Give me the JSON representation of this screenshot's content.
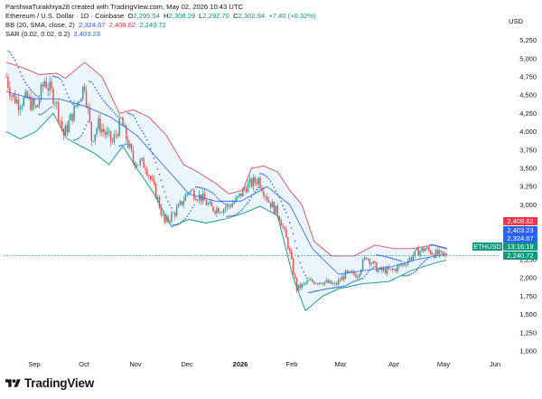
{
  "header": {
    "attribution": "ParshwaTurakhiya28 created with TradingView.com, May 02, 2026 10:43 UTC",
    "symbol": "Ethereum / U.S. Dollar · 1D · Coinbase",
    "o_label": "O",
    "o_value": "2,295.54",
    "h_label": "H",
    "h_value": "2,308.29",
    "l_label": "L",
    "l_value": "2,292.70",
    "c_label": "C",
    "c_value": "2,302.94",
    "change": "+7.40 (+0.32%)",
    "bb_label": "BB (20, SMA, close, 2)",
    "bb_basis": "2,324.67",
    "bb_upper": "2,408.62",
    "bb_lower": "2,240.72",
    "sar_label": "SAR (0.02, 0.02, 0.2)",
    "sar_value": "2,403.23"
  },
  "currency_label": "USD",
  "footer": {
    "brand": "TradingView"
  },
  "colors": {
    "up": "#26a69a",
    "down": "#ef5350",
    "bb_upper": "#e54865",
    "bb_lower": "#089981",
    "bb_basis": "#2962ff",
    "bb_fill": "#e3f2fd",
    "sar": "#2962ff",
    "price_line": "#089981"
  },
  "chart_data": {
    "type": "candlestick",
    "symbol": "ETHUSD",
    "timeframe": "1D",
    "x_ticks": [
      "Sep",
      "Oct",
      "Nov",
      "Dec",
      "2026",
      "Feb",
      "Mar",
      "Apr",
      "May",
      "Jun"
    ],
    "y_ticks": [
      1000,
      1250,
      1500,
      1750,
      2000,
      2250,
      2500,
      2750,
      3000,
      3250,
      3500,
      3750,
      4000,
      4250,
      4500,
      4750,
      5000,
      5250
    ],
    "ylim": [
      875,
      5430
    ],
    "grid": false,
    "price_labels": [
      {
        "text": "2,408.62",
        "value": 2408.62,
        "color": "#f23645"
      },
      {
        "text": "2,403.23",
        "value": 2403.23,
        "color": "#2962ff"
      },
      {
        "text": "2,324.67",
        "value": 2324.67,
        "color": "#2962ff"
      },
      {
        "text": "ETHUSD",
        "value": 2302.94,
        "color": "#089981"
      },
      {
        "text": "13:16:19",
        "value": 2302.94,
        "color": "#089981"
      },
      {
        "text": "2,240.72",
        "value": 2240.72,
        "color": "#089981"
      }
    ],
    "last_price": 2302.94,
    "series": {
      "close_path": [
        {
          "date": "2025-08-22",
          "close": 4750
        },
        {
          "date": "2025-08-25",
          "close": 4500
        },
        {
          "date": "2025-08-29",
          "close": 4400
        },
        {
          "date": "2025-09-03",
          "close": 4450
        },
        {
          "date": "2025-09-08",
          "close": 4300
        },
        {
          "date": "2025-09-13",
          "close": 4700
        },
        {
          "date": "2025-09-19",
          "close": 4450
        },
        {
          "date": "2025-09-24",
          "close": 3950
        },
        {
          "date": "2025-10-01",
          "close": 4350
        },
        {
          "date": "2025-10-06",
          "close": 4650
        },
        {
          "date": "2025-10-10",
          "close": 3900
        },
        {
          "date": "2025-10-14",
          "close": 4100
        },
        {
          "date": "2025-10-22",
          "close": 3850
        },
        {
          "date": "2025-10-27",
          "close": 4150
        },
        {
          "date": "2025-11-03",
          "close": 3600
        },
        {
          "date": "2025-11-10",
          "close": 3550
        },
        {
          "date": "2025-11-16",
          "close": 3150
        },
        {
          "date": "2025-11-21",
          "close": 2750
        },
        {
          "date": "2025-11-29",
          "close": 2950
        },
        {
          "date": "2025-12-05",
          "close": 3200
        },
        {
          "date": "2025-12-12",
          "close": 3100
        },
        {
          "date": "2025-12-18",
          "close": 2950
        },
        {
          "date": "2025-12-25",
          "close": 2950
        },
        {
          "date": "2026-01-01",
          "close": 3050
        },
        {
          "date": "2026-01-07",
          "close": 3250
        },
        {
          "date": "2026-01-14",
          "close": 3350
        },
        {
          "date": "2026-01-20",
          "close": 3050
        },
        {
          "date": "2026-01-26",
          "close": 2850
        },
        {
          "date": "2026-01-31",
          "close": 2450
        },
        {
          "date": "2026-02-05",
          "close": 1850
        },
        {
          "date": "2026-02-12",
          "close": 1950
        },
        {
          "date": "2026-02-20",
          "close": 1950
        },
        {
          "date": "2026-02-27",
          "close": 1900
        },
        {
          "date": "2026-03-05",
          "close": 2050
        },
        {
          "date": "2026-03-12",
          "close": 2050
        },
        {
          "date": "2026-03-17",
          "close": 2300
        },
        {
          "date": "2026-03-24",
          "close": 2100
        },
        {
          "date": "2026-04-01",
          "close": 2100
        },
        {
          "date": "2026-04-08",
          "close": 2200
        },
        {
          "date": "2026-04-15",
          "close": 2350
        },
        {
          "date": "2026-04-20",
          "close": 2400
        },
        {
          "date": "2026-04-25",
          "close": 2330
        },
        {
          "date": "2026-05-02",
          "close": 2303
        }
      ],
      "bb_upper_path": [
        {
          "date": "2025-08-22",
          "value": 4950
        },
        {
          "date": "2025-09-01",
          "value": 4870
        },
        {
          "date": "2025-09-10",
          "value": 4780
        },
        {
          "date": "2025-09-20",
          "value": 4800
        },
        {
          "date": "2025-09-25",
          "value": 4730
        },
        {
          "date": "2025-10-06",
          "value": 4950
        },
        {
          "date": "2025-10-16",
          "value": 4750
        },
        {
          "date": "2025-10-26",
          "value": 4250
        },
        {
          "date": "2025-11-03",
          "value": 4300
        },
        {
          "date": "2025-11-12",
          "value": 4200
        },
        {
          "date": "2025-11-22",
          "value": 3950
        },
        {
          "date": "2025-12-02",
          "value": 3550
        },
        {
          "date": "2025-12-10",
          "value": 3450
        },
        {
          "date": "2025-12-20",
          "value": 3300
        },
        {
          "date": "2025-12-28",
          "value": 3150
        },
        {
          "date": "2026-01-05",
          "value": 3200
        },
        {
          "date": "2026-01-10",
          "value": 3500
        },
        {
          "date": "2026-01-17",
          "value": 3530
        },
        {
          "date": "2026-01-25",
          "value": 3450
        },
        {
          "date": "2026-02-01",
          "value": 3200
        },
        {
          "date": "2026-02-08",
          "value": 3000
        },
        {
          "date": "2026-02-15",
          "value": 2500
        },
        {
          "date": "2026-02-25",
          "value": 2300
        },
        {
          "date": "2026-03-10",
          "value": 2300
        },
        {
          "date": "2026-03-22",
          "value": 2450
        },
        {
          "date": "2026-04-02",
          "value": 2400
        },
        {
          "date": "2026-04-12",
          "value": 2400
        },
        {
          "date": "2026-04-25",
          "value": 2450
        },
        {
          "date": "2026-05-02",
          "value": 2409
        }
      ],
      "bb_basis_path": [
        {
          "date": "2025-08-22",
          "value": 4550
        },
        {
          "date": "2025-09-06",
          "value": 4450
        },
        {
          "date": "2025-09-21",
          "value": 4450
        },
        {
          "date": "2025-10-06",
          "value": 4350
        },
        {
          "date": "2025-10-21",
          "value": 4200
        },
        {
          "date": "2025-11-05",
          "value": 3950
        },
        {
          "date": "2025-11-20",
          "value": 3550
        },
        {
          "date": "2025-12-05",
          "value": 3150
        },
        {
          "date": "2025-12-20",
          "value": 3050
        },
        {
          "date": "2026-01-04",
          "value": 3050
        },
        {
          "date": "2026-01-19",
          "value": 3250
        },
        {
          "date": "2026-02-01",
          "value": 3000
        },
        {
          "date": "2026-02-14",
          "value": 2400
        },
        {
          "date": "2026-03-01",
          "value": 2050
        },
        {
          "date": "2026-03-16",
          "value": 2100
        },
        {
          "date": "2026-03-31",
          "value": 2150
        },
        {
          "date": "2026-04-15",
          "value": 2250
        },
        {
          "date": "2026-05-02",
          "value": 2325
        }
      ],
      "bb_lower_path": [
        {
          "date": "2025-08-22",
          "value": 4000
        },
        {
          "date": "2025-08-30",
          "value": 3900
        },
        {
          "date": "2025-09-08",
          "value": 4000
        },
        {
          "date": "2025-09-18",
          "value": 4250
        },
        {
          "date": "2025-09-26",
          "value": 3900
        },
        {
          "date": "2025-10-04",
          "value": 3800
        },
        {
          "date": "2025-10-12",
          "value": 3700
        },
        {
          "date": "2025-10-20",
          "value": 3550
        },
        {
          "date": "2025-10-28",
          "value": 3800
        },
        {
          "date": "2025-11-05",
          "value": 3500
        },
        {
          "date": "2025-11-15",
          "value": 3150
        },
        {
          "date": "2025-11-25",
          "value": 2700
        },
        {
          "date": "2025-12-05",
          "value": 2800
        },
        {
          "date": "2025-12-15",
          "value": 2750
        },
        {
          "date": "2025-12-25",
          "value": 2800
        },
        {
          "date": "2026-01-05",
          "value": 2880
        },
        {
          "date": "2026-01-15",
          "value": 2980
        },
        {
          "date": "2026-01-25",
          "value": 2850
        },
        {
          "date": "2026-02-03",
          "value": 2000
        },
        {
          "date": "2026-02-10",
          "value": 1550
        },
        {
          "date": "2026-02-20",
          "value": 1750
        },
        {
          "date": "2026-03-01",
          "value": 1850
        },
        {
          "date": "2026-03-15",
          "value": 1920
        },
        {
          "date": "2026-03-30",
          "value": 1950
        },
        {
          "date": "2026-04-12",
          "value": 2100
        },
        {
          "date": "2026-04-25",
          "value": 2200
        },
        {
          "date": "2026-05-02",
          "value": 2241
        }
      ]
    }
  }
}
